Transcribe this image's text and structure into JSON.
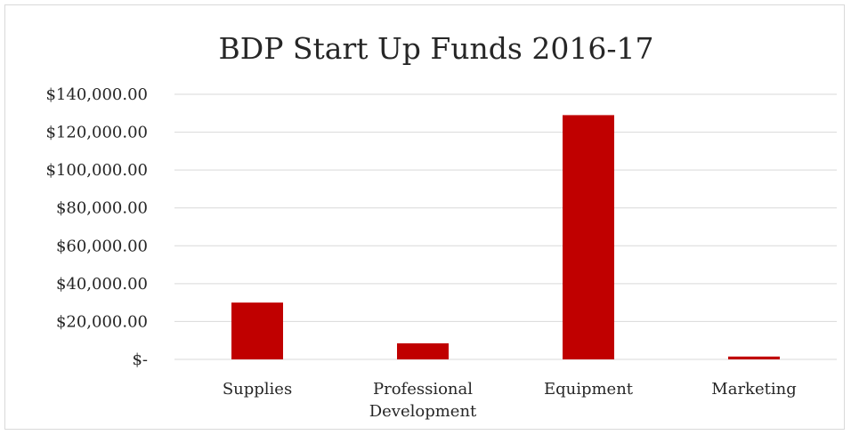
{
  "chart_data": {
    "type": "bar",
    "title": "BDP Start Up Funds 2016-17",
    "categories": [
      [
        "Supplies"
      ],
      [
        "Professional",
        "Development"
      ],
      [
        "Equipment"
      ],
      [
        "Marketing"
      ]
    ],
    "values": [
      30000,
      8500,
      129000,
      1500
    ],
    "ylim": [
      0,
      140000
    ],
    "yticks": [
      0,
      20000,
      40000,
      60000,
      80000,
      100000,
      120000,
      140000
    ],
    "ytick_labels": [
      "$-",
      "$20,000.00",
      "$40,000.00",
      "$60,000.00",
      "$80,000.00",
      "$100,000.00",
      "$120,000.00",
      "$140,000.00"
    ],
    "xlabel": "",
    "ylabel": "",
    "grid": true,
    "legend": "none",
    "colors": {
      "bar": "#c00000",
      "grid": "#d9d9d9",
      "text": "#262626"
    }
  }
}
